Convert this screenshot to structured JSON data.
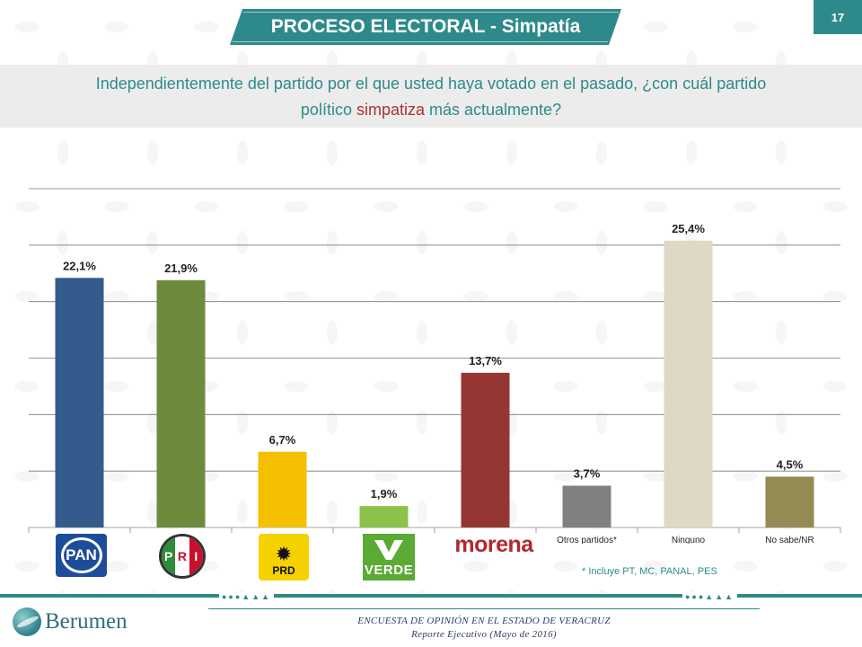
{
  "header": {
    "title": "PROCESO ELECTORAL - Simpatía",
    "page_number": "17"
  },
  "question": {
    "line1": "Independientemente del partido por el que usted haya votado en el pasado, ¿con cuál partido",
    "line2_prefix": "político ",
    "line2_highlight": "simpatiza",
    "line2_suffix": " más actualmente?"
  },
  "chart_data": {
    "type": "bar",
    "categories": [
      "PAN",
      "PRI",
      "PRD",
      "VERDE",
      "morena",
      "Otros partidos*",
      "Ninguno",
      "No sabe/NR"
    ],
    "values": [
      22.1,
      21.9,
      6.7,
      1.9,
      13.7,
      3.7,
      25.4,
      4.5
    ],
    "value_labels": [
      "22,1%",
      "21,9%",
      "6,7%",
      "1,9%",
      "13,7%",
      "3,7%",
      "25,4%",
      "4,5%"
    ],
    "colors": [
      "#345b8c",
      "#6e8b3d",
      "#f5c000",
      "#8bc34a",
      "#943634",
      "#808080",
      "#ddd9c4",
      "#948a54"
    ],
    "ylim": [
      0,
      30
    ],
    "grid": true,
    "title": "",
    "xlabel": "",
    "ylabel": ""
  },
  "logos": {
    "pan": {
      "label": "PAN",
      "icon": "pan-logo-icon"
    },
    "pri": {
      "letter_p": "P",
      "letter_r": "R",
      "letter_i": "I",
      "icon": "pri-logo-icon"
    },
    "prd": {
      "label": "PRD",
      "icon": "prd-logo-icon"
    },
    "verde": {
      "label": "VERDE",
      "icon": "verde-logo-icon"
    },
    "morena": {
      "label": "morena",
      "icon": "morena-logo-icon"
    }
  },
  "footnote": "* Incluye PT, MC, PANAL, PES",
  "footer": {
    "brand": "Berumen",
    "line1": "ENCUESTA DE OPINIÓN EN EL ESTADO DE  VERACRUZ",
    "line2": "Reporte  Ejecutivo  (Mayo de 2016)",
    "deco": "●●●▲▲▲"
  },
  "colors": {
    "accent": "#2e8a8a",
    "highlight": "#a83232"
  }
}
